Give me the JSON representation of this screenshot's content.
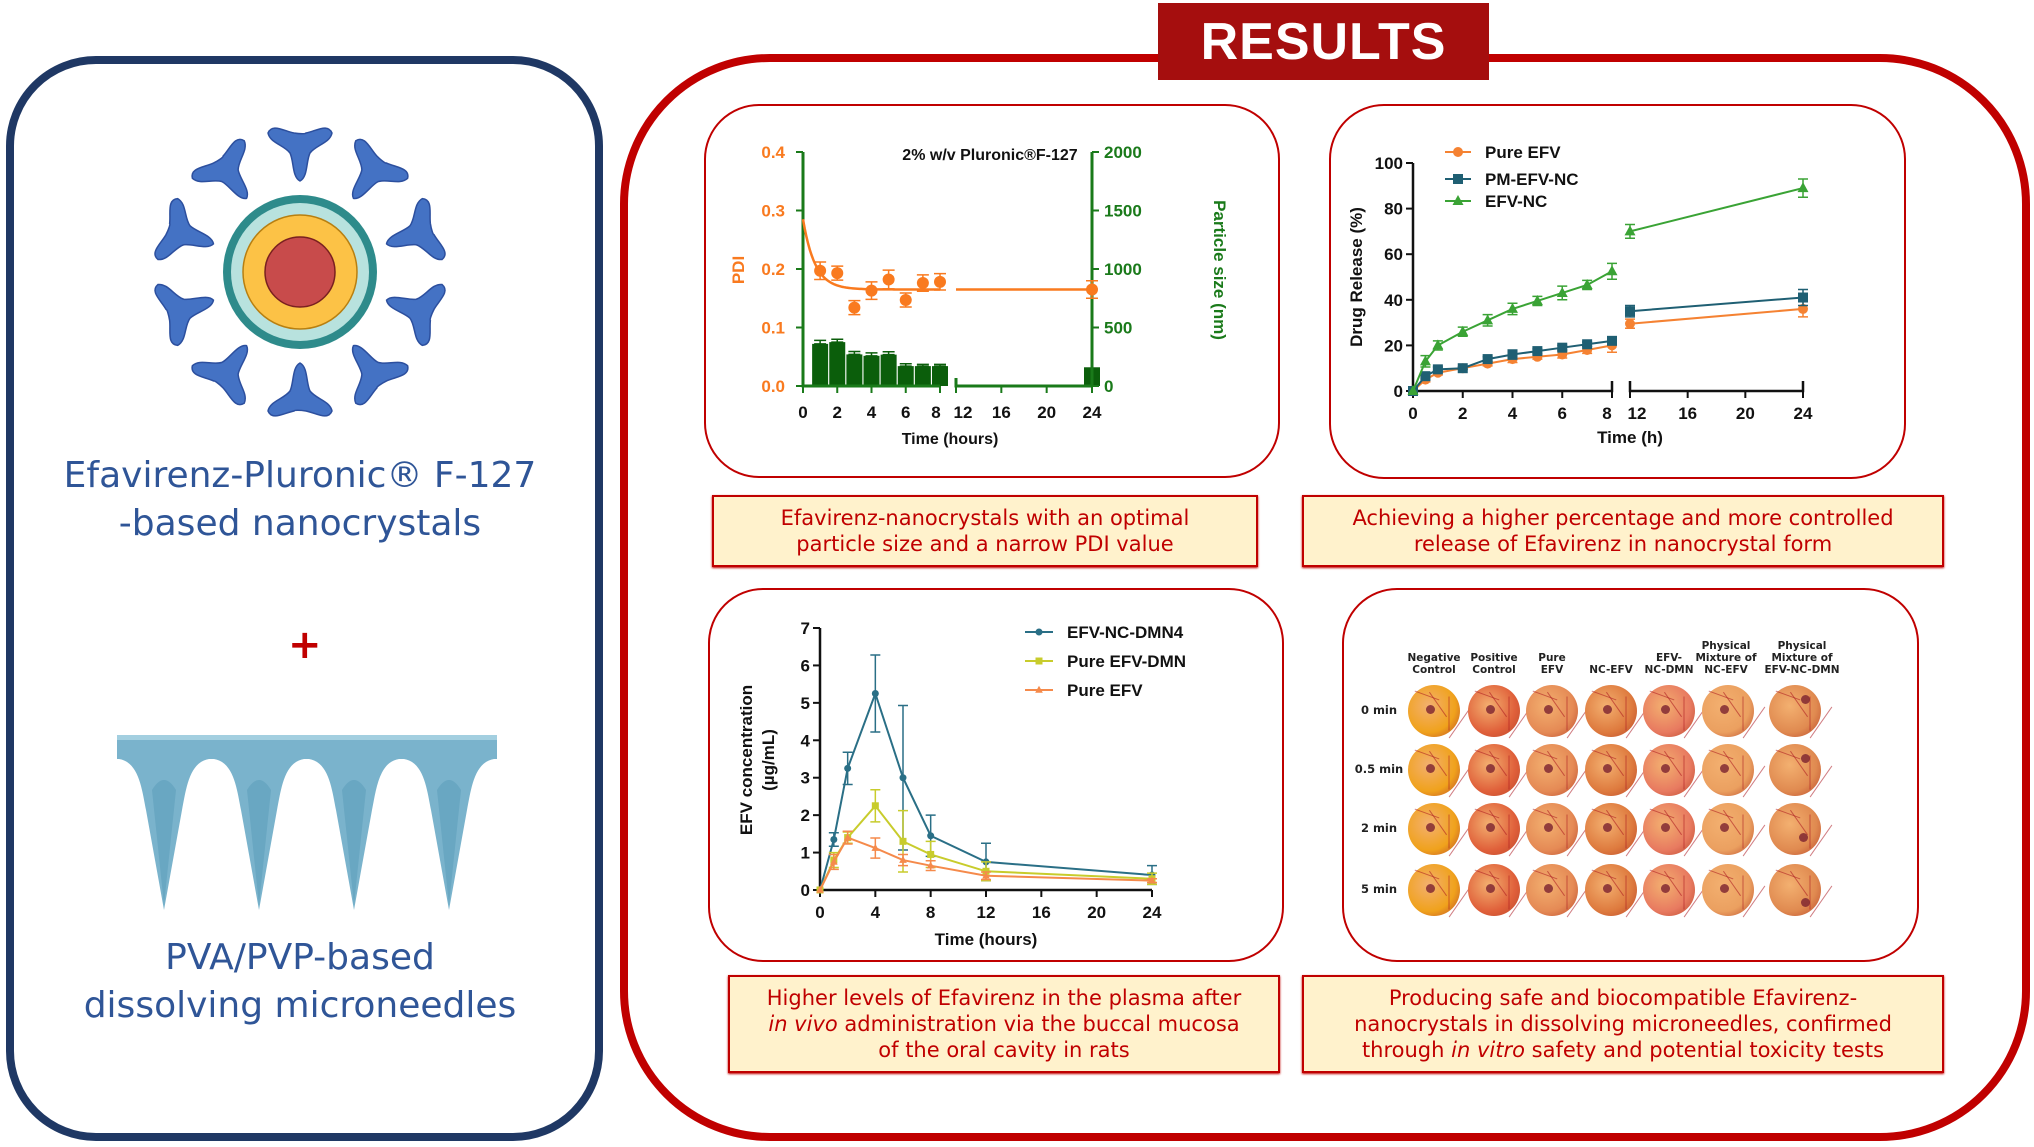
{
  "banner": {
    "title": "RESULTS"
  },
  "left_panel": {
    "nanocrystal_title": [
      "Efavirenz-Pluronic® F-127",
      "-based nanocrystals"
    ],
    "plus": "+",
    "microneedle_title": [
      "PVA/PVP-based",
      "dissolving microneedles"
    ],
    "colors": {
      "border": "#1f3864",
      "text": "#2f5597",
      "polymer": "#4472c4",
      "core": "#c84b4b",
      "shell": "#fcc246",
      "ring_outer": "#2e8b8b",
      "ring_inner": "#b8e2de",
      "needle": "#7ab3cc"
    }
  },
  "captions": {
    "c1": [
      "Efavirenz-nanocrystals with an optimal",
      "particle size and a narrow PDI value"
    ],
    "c2": [
      "Achieving a higher percentage and more controlled",
      "release of Efavirenz in nanocrystal form"
    ],
    "c3": {
      "line1": "Higher levels of Efavirenz in the plasma after",
      "italic1": "in vivo",
      "line2": " administration via the buccal mucosa",
      "line3": "of the oral cavity in rats"
    },
    "c4": {
      "line1": "Producing safe and biocompatible Efavirenz-",
      "line2": "nanocrystals in dissolving microneedles, confirmed",
      "line3a": "through ",
      "italic": "in vitro",
      "line3b": " safety and potential toxicity tests"
    }
  },
  "chart_data": [
    {
      "type": "bar+scatter",
      "title": "2% w/v Pluronic®F-127",
      "xlabel": "Time (hours)",
      "ylabel": "PDI",
      "ylabel_right": "Particle size (nm)",
      "x_ticks": [
        0,
        2,
        4,
        6,
        8,
        12,
        16,
        20,
        24
      ],
      "x_break": [
        8,
        12
      ],
      "ylim": [
        0,
        0.4
      ],
      "y_ticks": [
        "0.0",
        "0.1",
        "0.2",
        "0.3",
        "0.4"
      ],
      "ylim_right": [
        0,
        2000
      ],
      "y_ticks_right": [
        "0",
        "500",
        "1000",
        "1500",
        "2000"
      ],
      "pdi": {
        "x": [
          1,
          2,
          3,
          4,
          5,
          6,
          7,
          8,
          24
        ],
        "values": [
          0.197,
          0.193,
          0.134,
          0.163,
          0.182,
          0.147,
          0.176,
          0.178,
          0.165
        ],
        "error": [
          0.015,
          0.012,
          0.012,
          0.015,
          0.016,
          0.012,
          0.014,
          0.014,
          0.015
        ],
        "color": "#f97a1f"
      },
      "fit_curve": {
        "start": 0.285,
        "plateau": 0.165
      },
      "particle_size": {
        "x": [
          1,
          2,
          3,
          4,
          5,
          6,
          7,
          8,
          24
        ],
        "values": [
          360,
          375,
          270,
          258,
          268,
          170,
          170,
          170,
          160
        ],
        "error": [
          30,
          25,
          25,
          25,
          25,
          20,
          15,
          15,
          0
        ],
        "color": "#0b5e0b"
      },
      "axis_color": "#1a7a1a"
    },
    {
      "type": "line",
      "xlabel": "Time (h)",
      "ylabel": "Drug Release (%)",
      "x_ticks": [
        0,
        2,
        4,
        6,
        8,
        12,
        16,
        20,
        24
      ],
      "x_break": [
        8,
        12
      ],
      "ylim": [
        0,
        100
      ],
      "y_ticks": [
        0,
        20,
        40,
        60,
        80,
        100
      ],
      "legend": "top-left",
      "x": [
        0,
        0.5,
        1,
        2,
        3,
        4,
        5,
        6,
        7,
        8,
        12,
        24
      ],
      "series": [
        {
          "name": "Pure EFV",
          "marker": "circle",
          "color": "#f58232",
          "values": [
            0,
            5,
            8,
            10,
            12,
            14,
            15,
            16,
            18,
            20,
            29.5,
            36
          ],
          "error": [
            0,
            1,
            1,
            0.5,
            1,
            1.5,
            1,
            1.5,
            1.5,
            3,
            2,
            3.5
          ]
        },
        {
          "name": "PM-EFV-NC",
          "marker": "square",
          "color": "#1f5f73",
          "values": [
            0,
            6.5,
            9.5,
            10,
            14,
            16,
            17.5,
            19,
            20.5,
            22,
            35,
            41
          ],
          "error": [
            0,
            1,
            1,
            0.5,
            1,
            2,
            1,
            1,
            1,
            1.5,
            2.5,
            3.5
          ]
        },
        {
          "name": "EFV-NC",
          "marker": "triangle",
          "color": "#3aa335",
          "values": [
            0,
            13,
            20,
            26,
            31,
            36,
            39.5,
            43,
            46.5,
            52.5,
            70,
            89
          ],
          "error": [
            0,
            2.5,
            2,
            2,
            2.5,
            2.5,
            2,
            3,
            2,
            3.5,
            3,
            4
          ]
        }
      ]
    },
    {
      "type": "line",
      "xlabel": "Time (hours)",
      "ylabel": [
        "EFV concentration",
        "(µg/mL)"
      ],
      "x_ticks": [
        0,
        4,
        8,
        12,
        16,
        20,
        24
      ],
      "xlim": [
        0,
        24
      ],
      "ylim": [
        0,
        7
      ],
      "y_ticks": [
        0,
        1,
        2,
        3,
        4,
        5,
        6,
        7
      ],
      "legend": "top-right",
      "x": [
        0,
        1,
        2,
        4,
        6,
        8,
        12,
        24
      ],
      "series": [
        {
          "name": "EFV-NC-DMN4",
          "marker": "circle",
          "color": "#2a6f86",
          "values": [
            0,
            1.35,
            3.25,
            5.25,
            3.0,
            1.45,
            0.75,
            0.4
          ],
          "error": [
            0,
            0.18,
            0.43,
            1.03,
            1.93,
            0.55,
            0.5,
            0.25
          ]
        },
        {
          "name": "Pure EFV-DMN",
          "marker": "square",
          "color": "#c8cc2c",
          "values": [
            0,
            0.8,
            1.4,
            2.25,
            1.3,
            0.95,
            0.5,
            0.3
          ],
          "error": [
            0,
            0.2,
            0.15,
            0.43,
            0.82,
            0.35,
            0.25,
            0.15
          ]
        },
        {
          "name": "Pure EFV",
          "marker": "triangle",
          "color": "#f58a4b",
          "values": [
            0,
            0.75,
            1.4,
            1.12,
            0.8,
            0.65,
            0.38,
            0.25
          ],
          "error": [
            0,
            0.2,
            0.17,
            0.27,
            0.15,
            0.13,
            0.1,
            0.05
          ]
        }
      ]
    }
  ],
  "het_cam": {
    "columns": [
      "Negative\nControl",
      "Positive\nControl",
      "Pure\nEFV",
      "NC-EFV",
      "EFV-\nNC-DMN",
      "Physical\nMixture of\nNC-EFV",
      "Physical\nMixture of\nEFV-NC-DMN"
    ],
    "rows": [
      "0 min",
      "0.5 min",
      "2 min",
      "5 min"
    ],
    "column_colors": [
      "#f0a21c",
      "#e0603a",
      "#e58a55",
      "#de7a3e",
      "#e87a60",
      "#eba060",
      "#e08a50"
    ]
  }
}
